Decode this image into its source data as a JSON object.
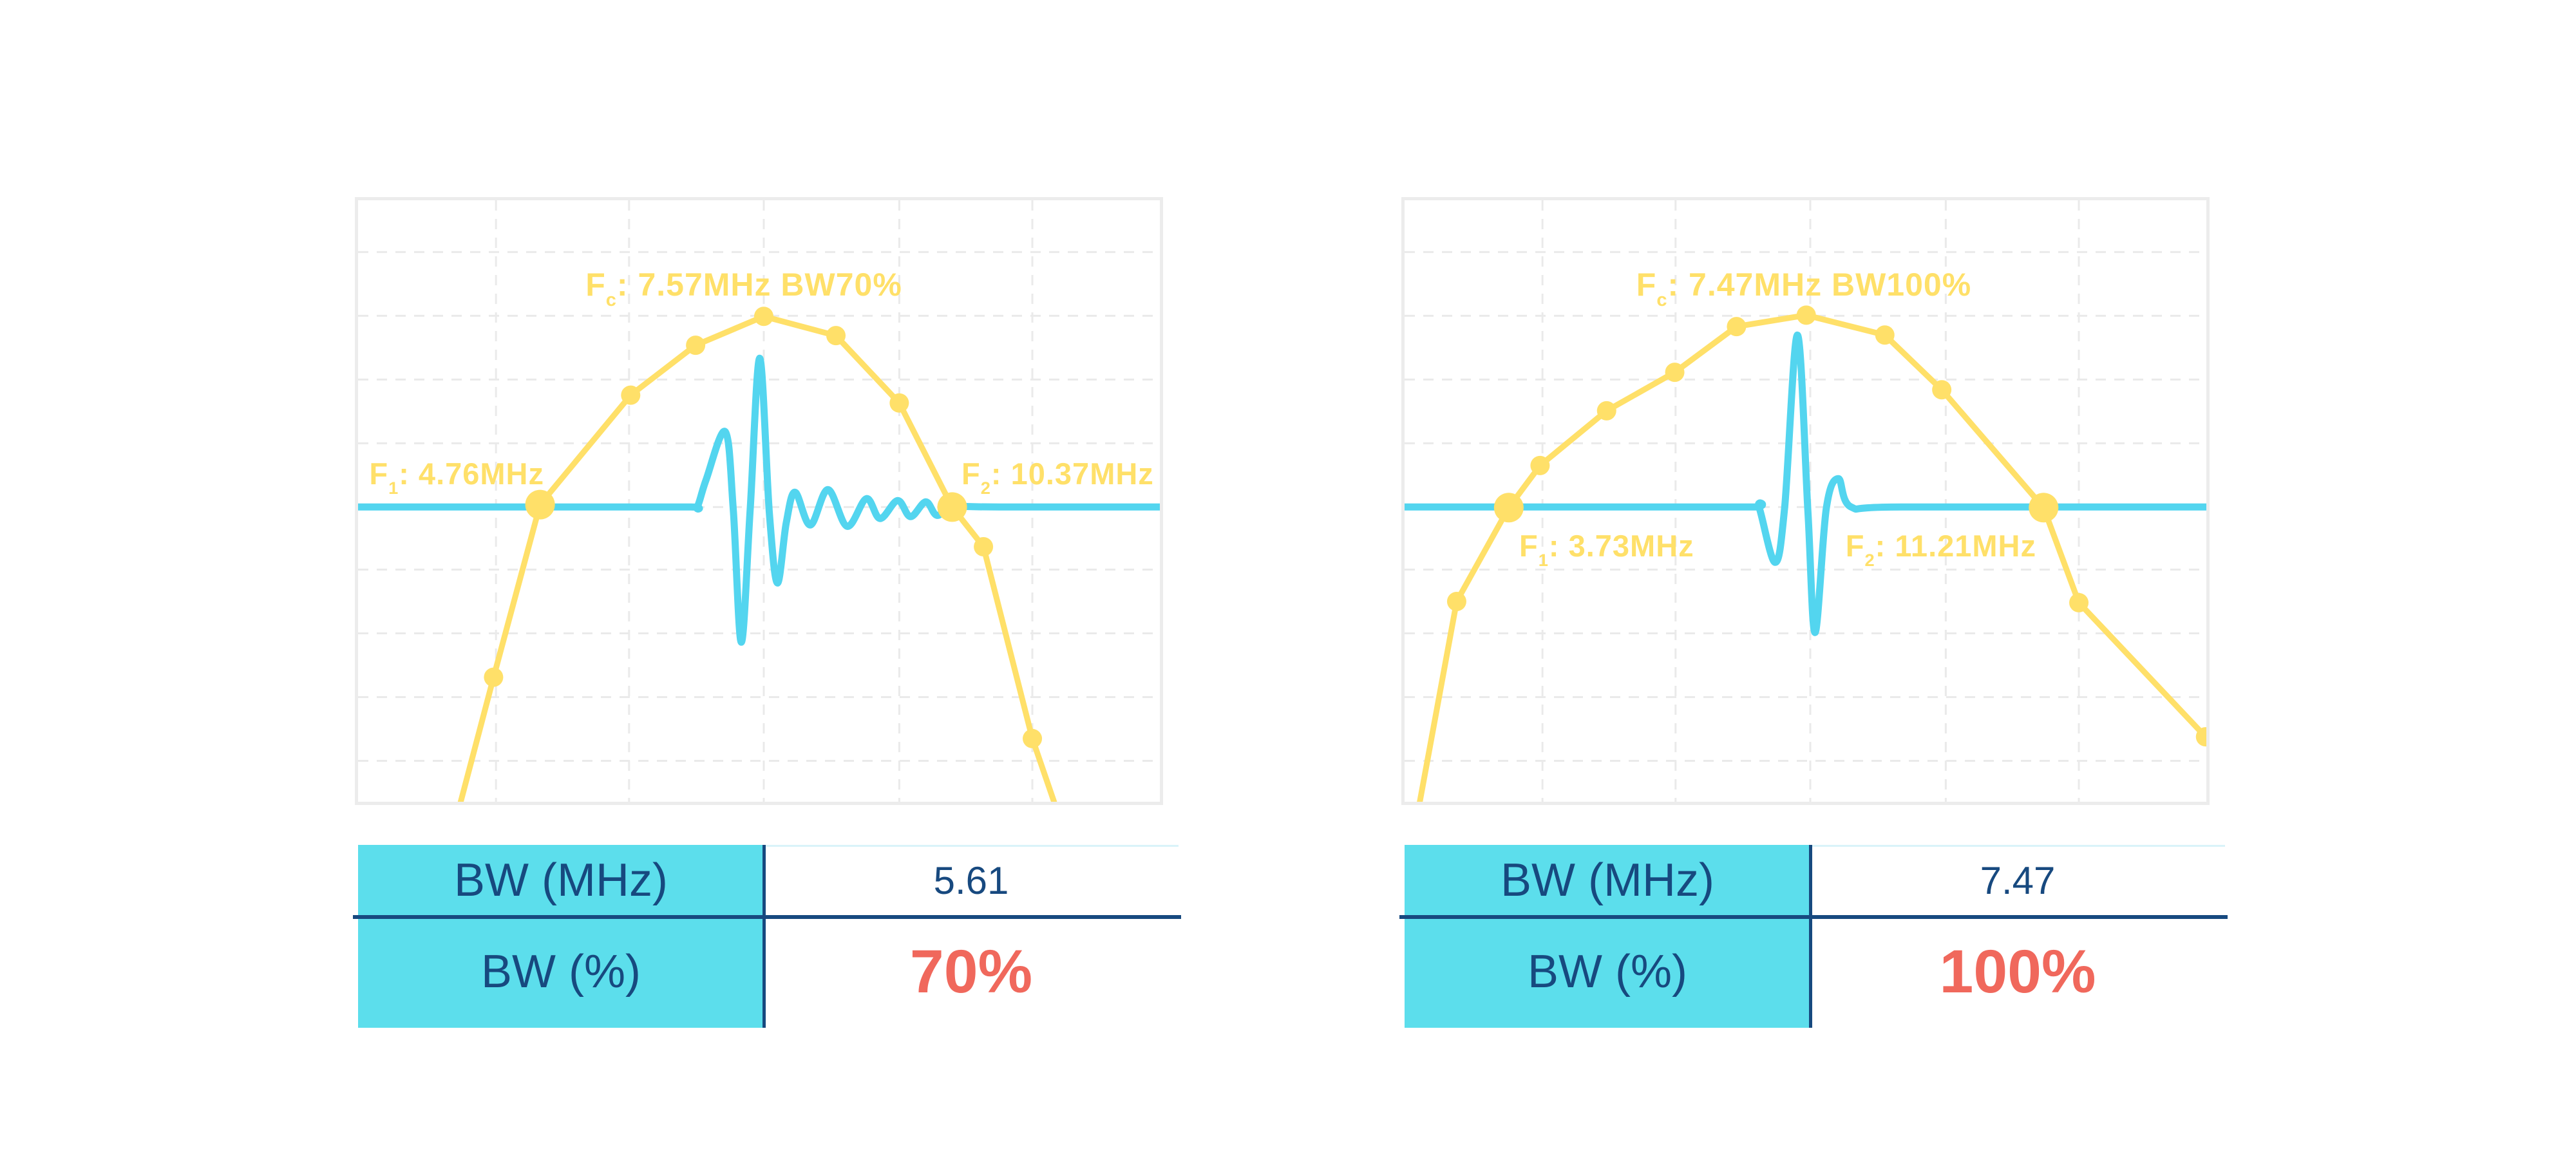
{
  "colors": {
    "yellow": "#FFE069",
    "cyan": "#53D5EF",
    "table_cyan": "#5CDEEC",
    "navy": "#17497F",
    "red": "#F0685C",
    "grid": "#EAEAEA",
    "frame_border": "#ECECEC"
  },
  "figures": [
    {
      "title": {
        "base": "F",
        "sub": "c",
        "rest": ": 7.57MHz BW70%"
      },
      "f1": {
        "base": "F",
        "sub": "1",
        "rest": ": 4.76MHz"
      },
      "f2": {
        "base": "F",
        "sub": "2",
        "rest": ": 10.37MHz"
      },
      "table": {
        "row1_label": "BW (MHz)",
        "row1_value": "5.61",
        "row2_label": "BW (%)",
        "row2_value": "70%"
      }
    },
    {
      "title": {
        "base": "F",
        "sub": "c",
        "rest": ": 7.47MHz BW100%"
      },
      "f1": {
        "base": "F",
        "sub": "1",
        "rest": ": 3.73MHz"
      },
      "f2": {
        "base": "F",
        "sub": "2",
        "rest": ": 11.21MHz"
      },
      "table": {
        "row1_label": "BW (MHz)",
        "row1_value": "7.47",
        "row2_label": "BW (%)",
        "row2_value": "100%"
      }
    }
  ],
  "chart_data": [
    {
      "type": "line",
      "title": "Fc: 7.57MHz BW70%",
      "axes_visible": false,
      "annotations": {
        "f1_mhz": 4.76,
        "fc_mhz": 7.57,
        "f2_mhz": 10.37,
        "bw_mhz": 5.61,
        "bw_pct": 70
      },
      "grid": {
        "v_frac": [
          0.172,
          0.338,
          0.506,
          0.675,
          0.841
        ],
        "h_frac": [
          0.086,
          0.192,
          0.298,
          0.404,
          0.51,
          0.614,
          0.72,
          0.826,
          0.932
        ]
      },
      "series": [
        {
          "name": "transducer-spectrum",
          "draw": "polyline",
          "color": "#FFE069",
          "width": 9,
          "points_frac": [
            [
              0.128,
              1.0
            ],
            [
              0.169,
              0.793
            ],
            [
              0.227,
              0.506
            ],
            [
              0.34,
              0.324
            ],
            [
              0.421,
              0.241
            ],
            [
              0.506,
              0.193
            ],
            [
              0.596,
              0.225
            ],
            [
              0.675,
              0.337
            ],
            [
              0.741,
              0.51
            ],
            [
              0.78,
              0.576
            ],
            [
              0.841,
              0.895
            ],
            [
              0.868,
              1.0
            ]
          ],
          "marker_small": [
            1,
            3,
            4,
            5,
            6,
            7,
            9,
            10
          ],
          "marker_big": [
            2,
            8
          ]
        },
        {
          "name": "pulse-echo-waveform",
          "draw": "smooth",
          "color": "#53D5EF",
          "width": 11,
          "baseline_frac": 0.51,
          "points": [
            [
              0.0,
              0
            ],
            [
              0.3,
              0
            ],
            [
              0.415,
              0
            ],
            [
              0.423,
              0
            ],
            [
              0.434,
              42
            ],
            [
              0.458,
              117
            ],
            [
              0.468,
              -5
            ],
            [
              0.478,
              -210
            ],
            [
              0.489,
              -5
            ],
            [
              0.501,
              231
            ],
            [
              0.513,
              -10
            ],
            [
              0.523,
              -118
            ],
            [
              0.534,
              -25
            ],
            [
              0.545,
              23
            ],
            [
              0.564,
              -28
            ],
            [
              0.586,
              27
            ],
            [
              0.61,
              -30
            ],
            [
              0.634,
              13
            ],
            [
              0.651,
              -18
            ],
            [
              0.673,
              10
            ],
            [
              0.689,
              -15
            ],
            [
              0.708,
              8
            ],
            [
              0.722,
              -13
            ],
            [
              0.741,
              0
            ],
            [
              0.8,
              0
            ],
            [
              1.0,
              0
            ]
          ]
        }
      ]
    },
    {
      "type": "line",
      "title": "Fc: 7.47MHz BW100%",
      "axes_visible": false,
      "annotations": {
        "f1_mhz": 3.73,
        "fc_mhz": 7.47,
        "f2_mhz": 11.21,
        "bw_mhz": 7.47,
        "bw_pct": 100
      },
      "grid": {
        "v_frac": [
          0.172,
          0.338,
          0.506,
          0.675,
          0.841
        ],
        "h_frac": [
          0.086,
          0.192,
          0.298,
          0.404,
          0.51,
          0.614,
          0.72,
          0.826,
          0.932
        ]
      },
      "series": [
        {
          "name": "transducer-spectrum",
          "draw": "polyline",
          "color": "#FFE069",
          "width": 9,
          "points_frac": [
            [
              0.019,
              1.0
            ],
            [
              0.065,
              0.667
            ],
            [
              0.13,
              0.511
            ],
            [
              0.169,
              0.441
            ],
            [
              0.252,
              0.35
            ],
            [
              0.337,
              0.286
            ],
            [
              0.414,
              0.21
            ],
            [
              0.501,
              0.191
            ],
            [
              0.599,
              0.224
            ],
            [
              0.67,
              0.315
            ],
            [
              0.797,
              0.511
            ],
            [
              0.841,
              0.669
            ],
            [
              0.999,
              0.892
            ]
          ],
          "marker_small": [
            1,
            3,
            4,
            5,
            6,
            7,
            8,
            9,
            11,
            12
          ],
          "marker_big": [
            2,
            10
          ]
        },
        {
          "name": "pulse-echo-waveform",
          "draw": "smooth",
          "color": "#53D5EF",
          "width": 11,
          "baseline_frac": 0.51,
          "points": [
            [
              0.0,
              0
            ],
            [
              0.3,
              0
            ],
            [
              0.435,
              0
            ],
            [
              0.442,
              0
            ],
            [
              0.462,
              -86
            ],
            [
              0.474,
              -2
            ],
            [
              0.49,
              267
            ],
            [
              0.503,
              -5
            ],
            [
              0.512,
              -195
            ],
            [
              0.526,
              -2
            ],
            [
              0.541,
              44
            ],
            [
              0.557,
              0
            ],
            [
              0.62,
              0
            ],
            [
              1.0,
              0
            ]
          ]
        }
      ]
    }
  ]
}
